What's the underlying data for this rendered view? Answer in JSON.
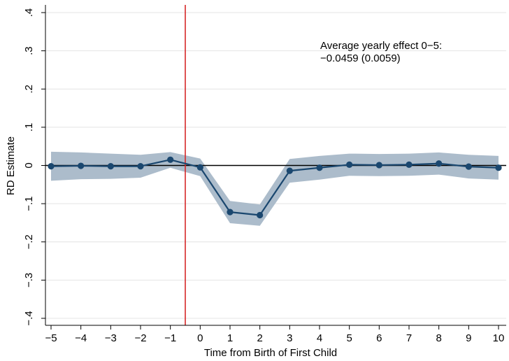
{
  "chart_data": {
    "type": "line",
    "title": "",
    "xlabel": "Time from Birth of First Child",
    "ylabel": "RD Estimate",
    "xlim": [
      -5,
      10
    ],
    "ylim": [
      -0.4,
      0.4
    ],
    "xticks": [
      -5,
      -4,
      -3,
      -2,
      -1,
      0,
      1,
      2,
      3,
      4,
      5,
      6,
      7,
      8,
      9,
      10
    ],
    "xtick_labels": [
      "−5",
      "−4",
      "−3",
      "−2",
      "−1",
      "0",
      "1",
      "2",
      "3",
      "4",
      "5",
      "6",
      "7",
      "8",
      "9",
      "10"
    ],
    "yticks": [
      -0.4,
      -0.3,
      -0.2,
      -0.1,
      0,
      0.1,
      0.2,
      0.3,
      0.4
    ],
    "ytick_labels": [
      "−.4",
      "−.3",
      "−.2",
      "−.1",
      "0",
      ".1",
      ".2",
      ".3",
      ".4"
    ],
    "grid": "horizontal",
    "series": [
      {
        "x": [
          -5,
          -4,
          -3,
          -2,
          -1,
          0,
          1,
          2,
          3,
          4,
          5,
          6,
          7,
          8,
          9,
          10
        ],
        "y": [
          -0.002,
          -0.001,
          -0.002,
          -0.002,
          0.015,
          -0.005,
          -0.122,
          -0.13,
          -0.014,
          -0.006,
          0.002,
          0.001,
          0.002,
          0.005,
          -0.003,
          -0.006
        ],
        "ci_lower": [
          -0.04,
          -0.036,
          -0.035,
          -0.032,
          -0.006,
          -0.028,
          -0.151,
          -0.158,
          -0.045,
          -0.037,
          -0.027,
          -0.028,
          -0.027,
          -0.024,
          -0.034,
          -0.037
        ],
        "ci_upper": [
          0.036,
          0.034,
          0.031,
          0.028,
          0.035,
          0.018,
          -0.093,
          -0.102,
          0.017,
          0.025,
          0.031,
          0.03,
          0.031,
          0.034,
          0.028,
          0.025
        ],
        "color": "#1a476f",
        "band_color": "#a8b8c8"
      }
    ],
    "reference_lines": {
      "horizontal_y": 0,
      "horizontal_color": "#000000",
      "vertical_x": -0.5,
      "vertical_color": "#d62728"
    },
    "annotation": {
      "line1": "Average yearly effect 0−5:",
      "line2": "−0.0459 (0.0059)"
    },
    "gridline_color": "#e4e4e4"
  }
}
